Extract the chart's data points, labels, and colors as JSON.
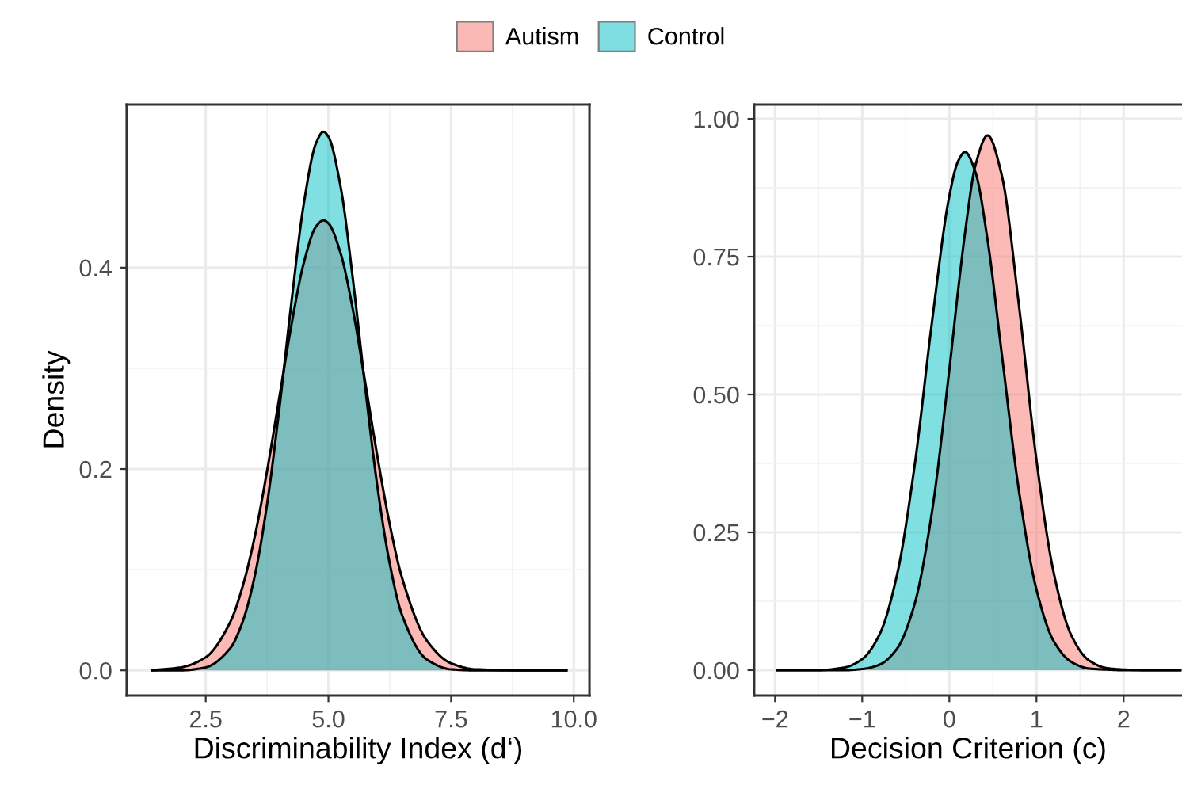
{
  "chart_data": [
    {
      "type": "area",
      "xlabel": "Discriminability Index (d‘)",
      "ylabel": "Density",
      "xlim": [
        0.89,
        10.32
      ],
      "ylim": [
        -0.025,
        0.562
      ],
      "xticks": [
        2.5,
        {
          "value": 5,
          "label": "5.0"
        },
        7.5,
        {
          "value": 10,
          "label": "10.0"
        }
      ],
      "yticks": [
        {
          "value": 0,
          "label": "0.0"
        },
        0.2,
        0.4
      ],
      "grid": true,
      "legend": "top",
      "x": [
        1.4,
        2.0,
        2.5,
        3.0,
        3.25,
        3.5,
        3.75,
        4.0,
        4.25,
        4.5,
        4.75,
        4.9,
        5.0,
        5.25,
        5.5,
        5.75,
        6.0,
        6.25,
        6.5,
        7.0,
        7.5,
        8.0,
        9.0,
        9.85
      ],
      "series": [
        {
          "name": "Autism",
          "color": "#f8766d",
          "values": [
            0.0,
            0.003,
            0.013,
            0.048,
            0.083,
            0.133,
            0.198,
            0.271,
            0.344,
            0.405,
            0.441,
            0.447,
            0.444,
            0.414,
            0.358,
            0.286,
            0.212,
            0.145,
            0.092,
            0.03,
            0.007,
            0.001,
            0.0,
            0.0
          ]
        },
        {
          "name": "Control",
          "color": "#00bfc4",
          "values": [
            0.0,
            0.0,
            0.003,
            0.022,
            0.048,
            0.094,
            0.165,
            0.26,
            0.367,
            0.464,
            0.524,
            0.535,
            0.53,
            0.48,
            0.388,
            0.281,
            0.182,
            0.106,
            0.055,
            0.011,
            0.001,
            0.0,
            0.0,
            0.0
          ]
        }
      ]
    },
    {
      "type": "area",
      "xlabel": "Decision Criterion (c)",
      "xlim": [
        -2.24,
        2.67
      ],
      "ylim": [
        -0.046,
        1.026
      ],
      "xticks": [
        {
          "value": -2,
          "label": "−2"
        },
        {
          "value": -1,
          "label": "−1"
        },
        0,
        1,
        2
      ],
      "yticks": [
        {
          "value": 0,
          "label": "0.00"
        },
        0.25,
        {
          "value": 0.5,
          "label": "0.50"
        },
        0.75,
        {
          "value": 1,
          "label": "1.00"
        }
      ],
      "grid": true,
      "x": [
        -1.97,
        -1.5,
        -1.2,
        -1.0,
        -0.8,
        -0.6,
        -0.4,
        -0.2,
        0.0,
        0.1,
        0.18,
        0.3,
        0.44,
        0.6,
        0.8,
        1.0,
        1.2,
        1.4,
        1.6,
        1.8,
        2.0,
        2.3,
        2.65
      ],
      "series": [
        {
          "color": "#f8766d",
          "values": [
            0.0,
            0.0,
            0.0,
            0.002,
            0.01,
            0.039,
            0.119,
            0.286,
            0.545,
            0.688,
            0.793,
            0.916,
            0.97,
            0.899,
            0.66,
            0.381,
            0.175,
            0.063,
            0.018,
            0.004,
            0.001,
            0.0,
            0.0
          ]
        },
        {
          "color": "#00bfc4",
          "values": [
            0.0,
            0.0,
            0.005,
            0.02,
            0.065,
            0.173,
            0.369,
            0.63,
            0.86,
            0.923,
            0.94,
            0.903,
            0.779,
            0.576,
            0.324,
            0.146,
            0.052,
            0.015,
            0.003,
            0.001,
            0.0,
            0.0,
            0.0
          ]
        }
      ]
    }
  ]
}
